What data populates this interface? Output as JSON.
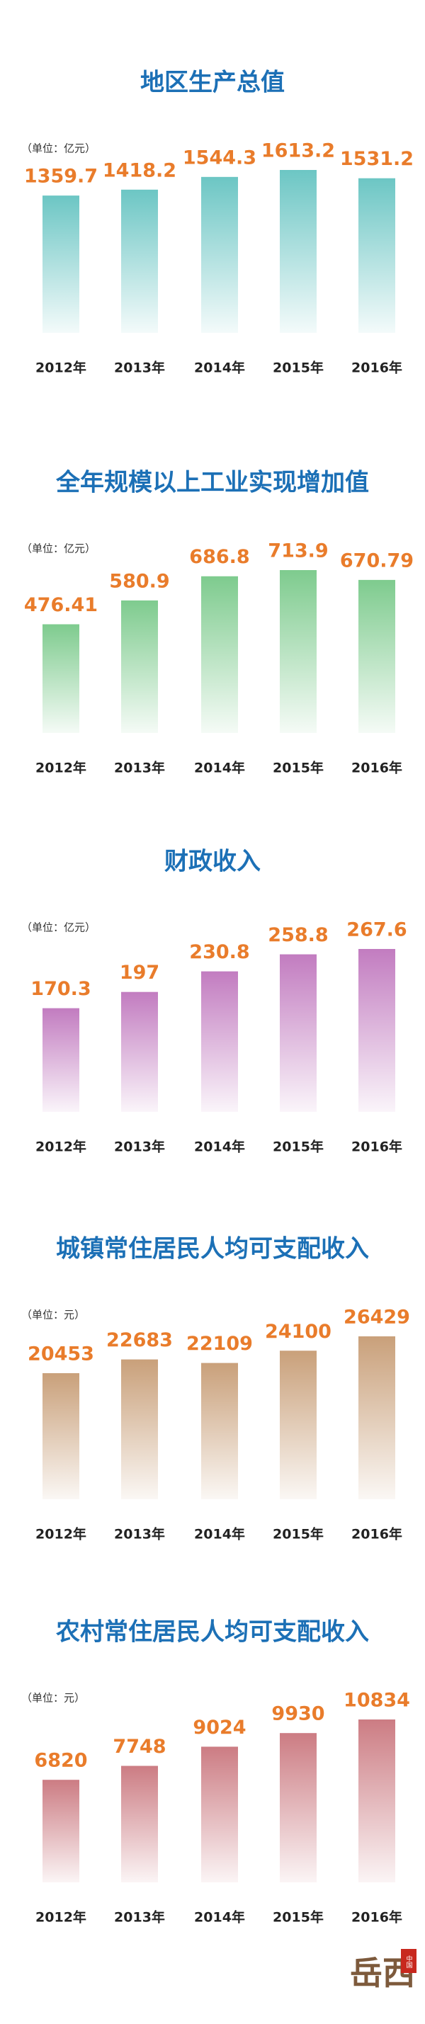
{
  "chart_data": [
    {
      "type": "bar",
      "title": "地区生产总值",
      "unit": "（单位：亿元）",
      "categories": [
        "2012年",
        "2013年",
        "2014年",
        "2015年",
        "2016年"
      ],
      "values": [
        1359.7,
        1418.2,
        1544.3,
        1613.2,
        1531.2
      ],
      "color": "#6cc6c4"
    },
    {
      "type": "bar",
      "title": "全年规模以上工业实现增加值",
      "unit": "（单位：亿元）",
      "categories": [
        "2012年",
        "2013年",
        "2014年",
        "2015年",
        "2016年"
      ],
      "values": [
        476.41,
        580.9,
        686.8,
        713.9,
        670.79
      ],
      "color": "#7ecb8e"
    },
    {
      "type": "bar",
      "title": "财政收入",
      "unit": "（单位：亿元）",
      "categories": [
        "2012年",
        "2013年",
        "2014年",
        "2015年",
        "2016年"
      ],
      "values": [
        170.3,
        197,
        230.8,
        258.8,
        267.6
      ],
      "color": "#c27cc0"
    },
    {
      "type": "bar",
      "title": "城镇常住居民人均可支配收入",
      "unit": "（单位：元）",
      "categories": [
        "2012年",
        "2013年",
        "2014年",
        "2015年",
        "2016年"
      ],
      "values": [
        20453,
        22683,
        22109,
        24100,
        26429
      ],
      "color": "#c9a07a"
    },
    {
      "type": "bar",
      "title": "农村常住居民人均可支配收入",
      "unit": "（单位：元）",
      "categories": [
        "2012年",
        "2013年",
        "2014年",
        "2015年",
        "2016年"
      ],
      "values": [
        6820,
        7748,
        9024,
        9930,
        10834
      ],
      "color": "#cc7c83"
    }
  ],
  "logo": {
    "text": "岳西",
    "stamp": "中国"
  }
}
